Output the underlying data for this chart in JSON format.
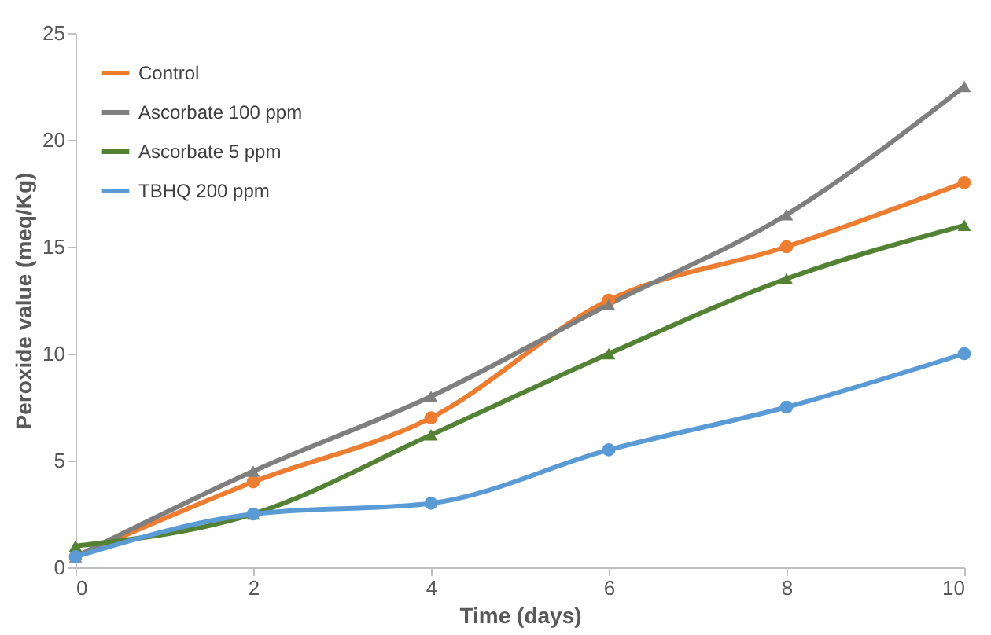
{
  "chart_data": {
    "type": "line",
    "xlabel": "Time (days)",
    "ylabel": "Peroxide value (meq/Kg)",
    "x": [
      0,
      2,
      4,
      6,
      8,
      10
    ],
    "series": [
      {
        "name": "Control",
        "color": "#ed7d31",
        "marker": "circle",
        "values": [
          0.5,
          4,
          7,
          12.5,
          15,
          18
        ]
      },
      {
        "name": "Ascorbate 100 ppm",
        "color": "#7f7f7f",
        "marker": "triangle",
        "values": [
          0.5,
          4.5,
          8,
          12.3,
          16.5,
          22.5
        ]
      },
      {
        "name": "Ascorbate 5 ppm",
        "color": "#548235",
        "marker": "triangle",
        "values": [
          1,
          2.5,
          6.2,
          10,
          13.5,
          16
        ]
      },
      {
        "name": "TBHQ 200 ppm",
        "color": "#5b9bd5",
        "marker": "circle",
        "values": [
          0.5,
          2.5,
          3,
          5.5,
          7.5,
          10
        ]
      }
    ],
    "xlim": [
      0,
      10
    ],
    "xticks": [
      0,
      2,
      4,
      6,
      8,
      10
    ],
    "ylim": [
      0,
      25
    ],
    "yticks": [
      0,
      5,
      10,
      15,
      20,
      25
    ],
    "grid": false,
    "legend": "top left",
    "line_style": "solid"
  }
}
